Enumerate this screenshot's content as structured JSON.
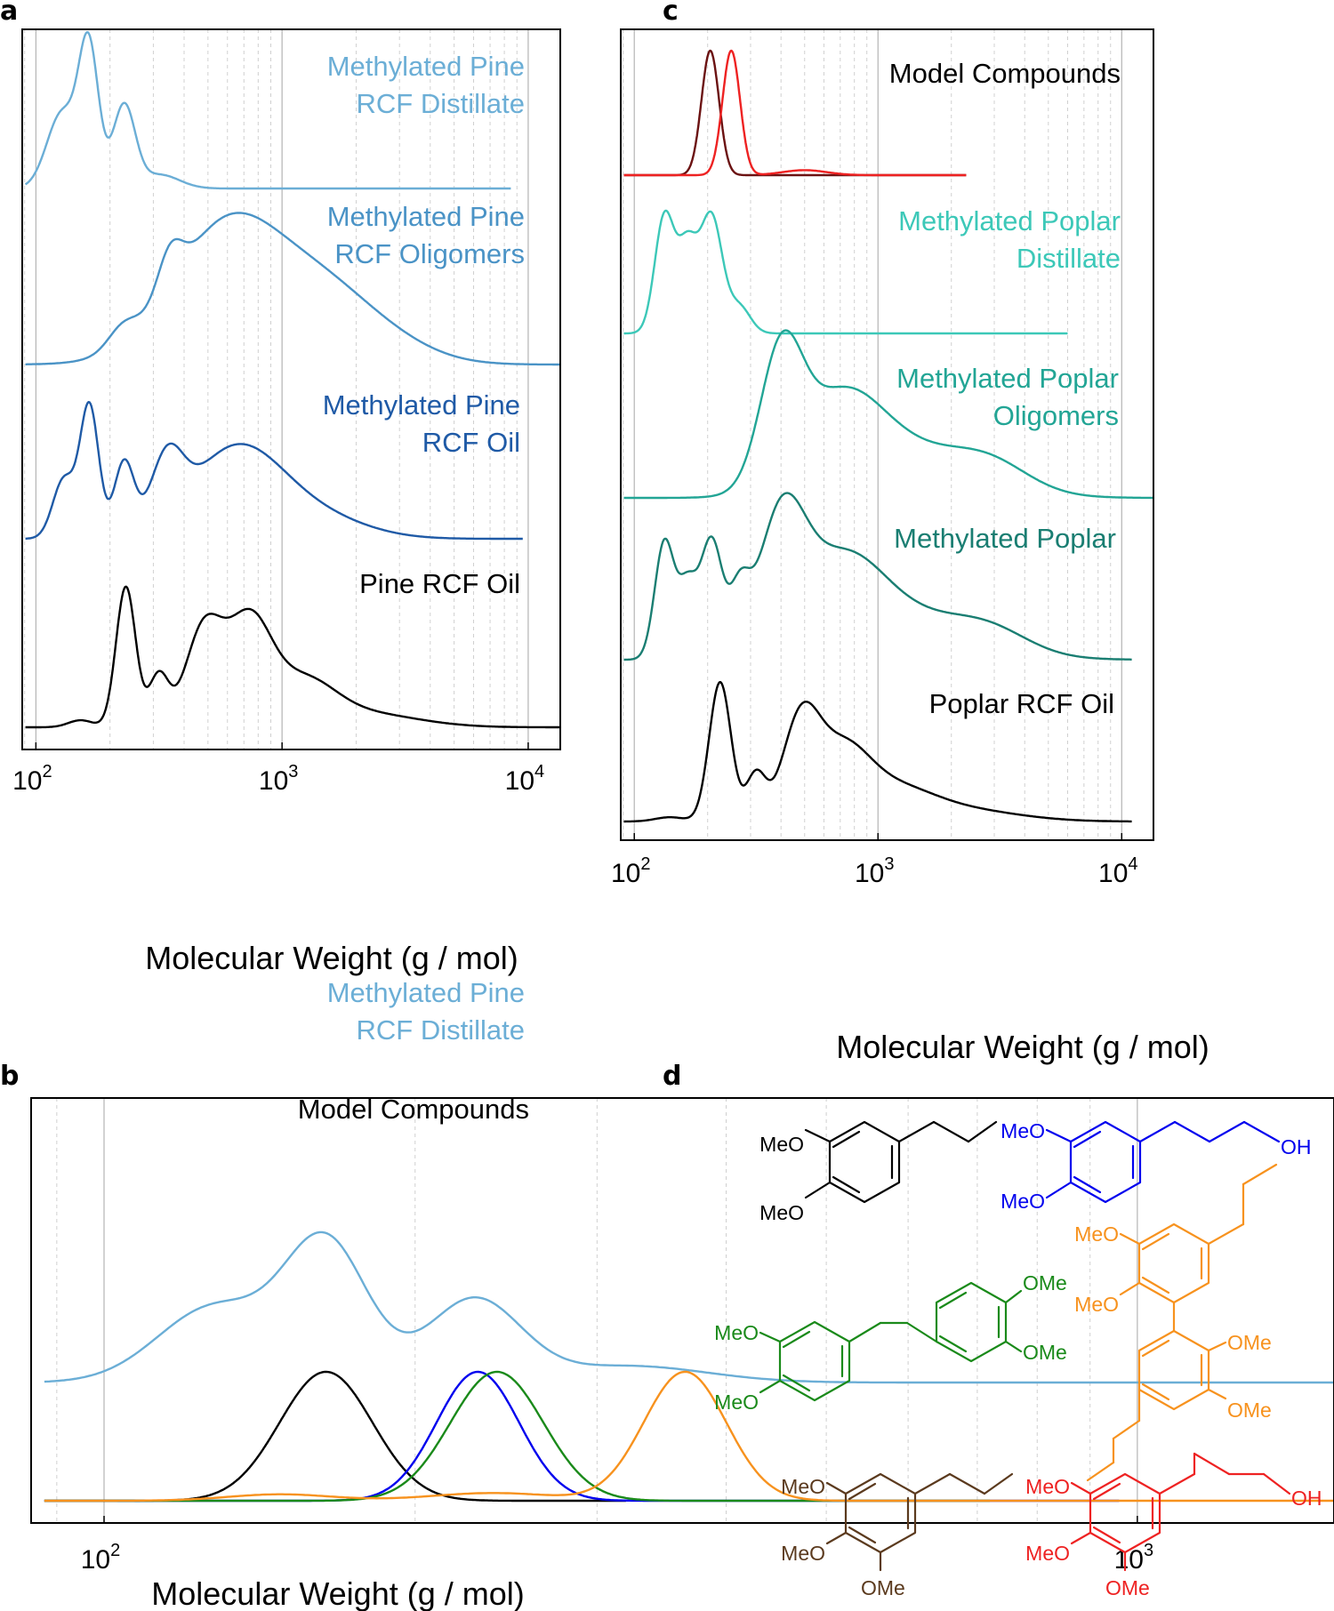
{
  "colors": {
    "pine_distillate": "#6baed6",
    "pine_oligomers": "#4a93c6",
    "pine_oil_methylated": "#1f5aa6",
    "black": "#000000",
    "poplar_distillate": "#3cc8b8",
    "poplar_oligomers": "#22a595",
    "poplar_methylated": "#1a7e72",
    "red": "#ee2222",
    "dark_red": "#6b1212",
    "blue": "#0000ee",
    "green": "#1a8a1a",
    "orange": "#f7921e",
    "brown": "#5b3a1e",
    "grid_major": "#b4b4b4",
    "grid_minor": "#d0d0d0"
  },
  "chart_data": [
    {
      "panel": "a",
      "type": "line",
      "xscale": "log",
      "xlim": [
        88,
        13500
      ],
      "xlabel": "Molecular Weight (g / mol)",
      "ylabel": "",
      "x_ticks": [
        {
          "value": 100,
          "base": "10",
          "exp": "2"
        },
        {
          "value": 1000,
          "base": "10",
          "exp": "3"
        },
        {
          "value": 10000,
          "base": "10",
          "exp": "4"
        }
      ],
      "grid": "vertical, minor dashed",
      "series": [
        {
          "name": "Methylated Pine RCF Distillate",
          "label_lines": [
            "Methylated Pine",
            "RCF Distillate"
          ],
          "color_key": "pine_distillate",
          "baseline": 0,
          "amplitude": 1.0,
          "x_end": 8500,
          "peaks": [
            [
              128,
              0.062,
              0.55
            ],
            [
              164,
              0.04,
              1.0
            ],
            [
              228,
              0.045,
              0.6
            ],
            [
              318,
              0.08,
              0.1
            ]
          ]
        },
        {
          "name": "Methylated Pine RCF Oligomers",
          "label_lines": [
            "Methylated Pine",
            "RCF Oligomers"
          ],
          "color_key": "pine_oligomers",
          "baseline": 0,
          "amplitude": 1.0,
          "x_end": 14000,
          "peaks": [
            [
              225,
              0.06,
              0.12
            ],
            [
              350,
              0.05,
              0.25
            ],
            [
              620,
              0.23,
              0.92
            ],
            [
              1450,
              0.18,
              0.28
            ],
            [
              2400,
              0.2,
              0.18
            ]
          ]
        },
        {
          "name": "Methylated Pine RCF Oil",
          "label_lines": [
            "Methylated Pine",
            "RCF Oil"
          ],
          "color_key": "pine_oil_methylated",
          "baseline": 0,
          "amplitude": 1.0,
          "x_end": 9500,
          "peaks": [
            [
              130,
              0.045,
              0.45
            ],
            [
              165,
              0.038,
              1.0
            ],
            [
              228,
              0.04,
              0.55
            ],
            [
              340,
              0.065,
              0.48
            ],
            [
              650,
              0.19,
              0.68
            ],
            [
              1400,
              0.2,
              0.15
            ]
          ]
        },
        {
          "name": "Pine RCF Oil",
          "label_lines": [
            "Pine RCF Oil"
          ],
          "color_key": "black",
          "baseline": 0,
          "amplitude": 1.0,
          "x_end": 14000,
          "peaks": [
            [
              152,
              0.05,
              0.05
            ],
            [
              232,
              0.04,
              1.0
            ],
            [
              315,
              0.04,
              0.36
            ],
            [
              480,
              0.075,
              0.68
            ],
            [
              730,
              0.09,
              0.72
            ],
            [
              1200,
              0.13,
              0.3
            ],
            [
              2100,
              0.22,
              0.1
            ]
          ]
        }
      ]
    },
    {
      "panel": "b",
      "type": "line",
      "xscale": "log",
      "xlim": [
        85,
        1550
      ],
      "xlabel": "Molecular Weight (g / mol)",
      "ylabel": "",
      "x_ticks": [
        {
          "value": 100,
          "base": "10",
          "exp": "2"
        },
        {
          "value": 1000,
          "base": "10",
          "exp": "3"
        }
      ],
      "grid": "vertical, minor dashed",
      "series": [
        {
          "name": "Methylated Pine RCF Distillate",
          "label_lines": [
            "Methylated Pine",
            "RCF Distillate"
          ],
          "color_key": "pine_distillate",
          "x_end": 1550,
          "peaks": [
            [
              128,
              0.055,
              0.55
            ],
            [
              164,
              0.04,
              1.0
            ],
            [
              228,
              0.045,
              0.6
            ],
            [
              322,
              0.075,
              0.12
            ]
          ]
        },
        {
          "name": "Model compound: 1,2-dimethoxy-4-propylbenzene",
          "color_key": "black",
          "x_end": 320,
          "peaks": [
            [
              164,
              0.045,
              1.0
            ]
          ]
        },
        {
          "name": "Model compound: 3-(3,4-dimethoxyphenyl)propan-1-ol",
          "color_key": "blue",
          "x_end": 960,
          "peaks": [
            [
              230,
              0.04,
              1.0
            ]
          ]
        },
        {
          "name": "Model compound: dimethoxyphenyl ethane dimer",
          "color_key": "green",
          "x_end": 720,
          "peaks": [
            [
              240,
              0.045,
              1.0
            ]
          ]
        },
        {
          "name": "Model compound: propyl biphenyl dimer",
          "color_key": "orange",
          "x_end": 1550,
          "peaks": [
            [
              148,
              0.05,
              0.05
            ],
            [
              238,
              0.06,
              0.06
            ],
            [
              365,
              0.04,
              1.0
            ]
          ]
        }
      ],
      "annotation": "Model Compounds"
    },
    {
      "panel": "c",
      "type": "line",
      "xscale": "log",
      "xlim": [
        88,
        13500
      ],
      "xlabel": "Molecular Weight (g / mol)",
      "ylabel": "",
      "x_ticks": [
        {
          "value": 100,
          "base": "10",
          "exp": "2"
        },
        {
          "value": 1000,
          "base": "10",
          "exp": "3"
        },
        {
          "value": 10000,
          "base": "10",
          "exp": "4"
        }
      ],
      "grid": "vertical, minor dashed",
      "series": [
        {
          "name": "Model compound: 1,2,3-trimethoxy-5-propylbenzene",
          "color_key": "dark_red",
          "x_end": 2300,
          "peaks": [
            [
              205,
              0.036,
              1.0
            ]
          ]
        },
        {
          "name": "Model compound: 3-(3,4,5-trimethoxyphenyl)propan-1-ol",
          "color_key": "red",
          "x_end": 2300,
          "peaks": [
            [
              250,
              0.036,
              1.0
            ],
            [
              500,
              0.09,
              0.04
            ]
          ]
        },
        {
          "name": "Methylated Poplar Distillate",
          "label_lines": [
            "Methylated Poplar",
            "Distillate"
          ],
          "color_key": "poplar_distillate",
          "x_end": 6000,
          "peaks": [
            [
              133,
              0.04,
              0.97
            ],
            [
              165,
              0.04,
              0.7
            ],
            [
              207,
              0.045,
              0.97
            ],
            [
              270,
              0.045,
              0.22
            ]
          ]
        },
        {
          "name": "Methylated Poplar Oligomers",
          "label_lines": [
            "Methylated Poplar",
            "Oligomers"
          ],
          "color_key": "poplar_oligomers",
          "x_end": 14000,
          "peaks": [
            [
              400,
              0.085,
              0.9
            ],
            [
              700,
              0.18,
              0.7
            ],
            [
              1700,
              0.25,
              0.3
            ],
            [
              3000,
              0.15,
              0.12
            ]
          ]
        },
        {
          "name": "Methylated Poplar",
          "label_lines": [
            "Methylated Poplar"
          ],
          "color_key": "poplar_methylated",
          "x_end": 11000,
          "peaks": [
            [
              133,
              0.04,
              0.88
            ],
            [
              165,
              0.038,
              0.52
            ],
            [
              207,
              0.045,
              0.88
            ],
            [
              270,
              0.04,
              0.4
            ],
            [
              400,
              0.095,
              0.92
            ],
            [
              700,
              0.18,
              0.72
            ],
            [
              1700,
              0.25,
              0.28
            ],
            [
              3000,
              0.15,
              0.1
            ]
          ]
        },
        {
          "name": "Poplar RCF Oil",
          "label_lines": [
            "Poplar RCF Oil"
          ],
          "color_key": "black",
          "x_end": 11000,
          "peaks": [
            [
              140,
              0.06,
              0.03
            ],
            [
              225,
              0.045,
              0.98
            ],
            [
              315,
              0.04,
              0.32
            ],
            [
              480,
              0.075,
              0.65
            ],
            [
              700,
              0.11,
              0.43
            ],
            [
              1100,
              0.17,
              0.22
            ],
            [
              2200,
              0.23,
              0.08
            ]
          ]
        }
      ],
      "annotation": "Model Compounds"
    }
  ],
  "panels": {
    "a": {
      "label": "a",
      "xlabel": "Molecular Weight (g / mol)"
    },
    "b": {
      "label": "b",
      "xlabel": "Molecular Weight (g / mol)",
      "model_label": "Model Compounds"
    },
    "c": {
      "label": "c",
      "xlabel": "Molecular Weight (g / mol)",
      "model_label": "Model Compounds"
    },
    "d": {
      "label": "d",
      "structures": {
        "s1": {
          "color_key": "black",
          "labels": [
            "MeO",
            "MeO"
          ]
        },
        "s2": {
          "color_key": "blue",
          "labels": [
            "MeO",
            "MeO",
            "OH"
          ]
        },
        "s3": {
          "color_key": "orange",
          "labels": [
            "MeO",
            "MeO",
            "OMe",
            "OMe"
          ]
        },
        "s4": {
          "color_key": "green",
          "labels": [
            "MeO",
            "MeO",
            "OMe",
            "OMe"
          ]
        },
        "s5": {
          "color_key": "brown",
          "labels": [
            "MeO",
            "MeO",
            "OMe"
          ]
        },
        "s6": {
          "color_key": "red",
          "labels": [
            "MeO",
            "MeO",
            "OMe",
            "OH"
          ]
        }
      }
    }
  }
}
